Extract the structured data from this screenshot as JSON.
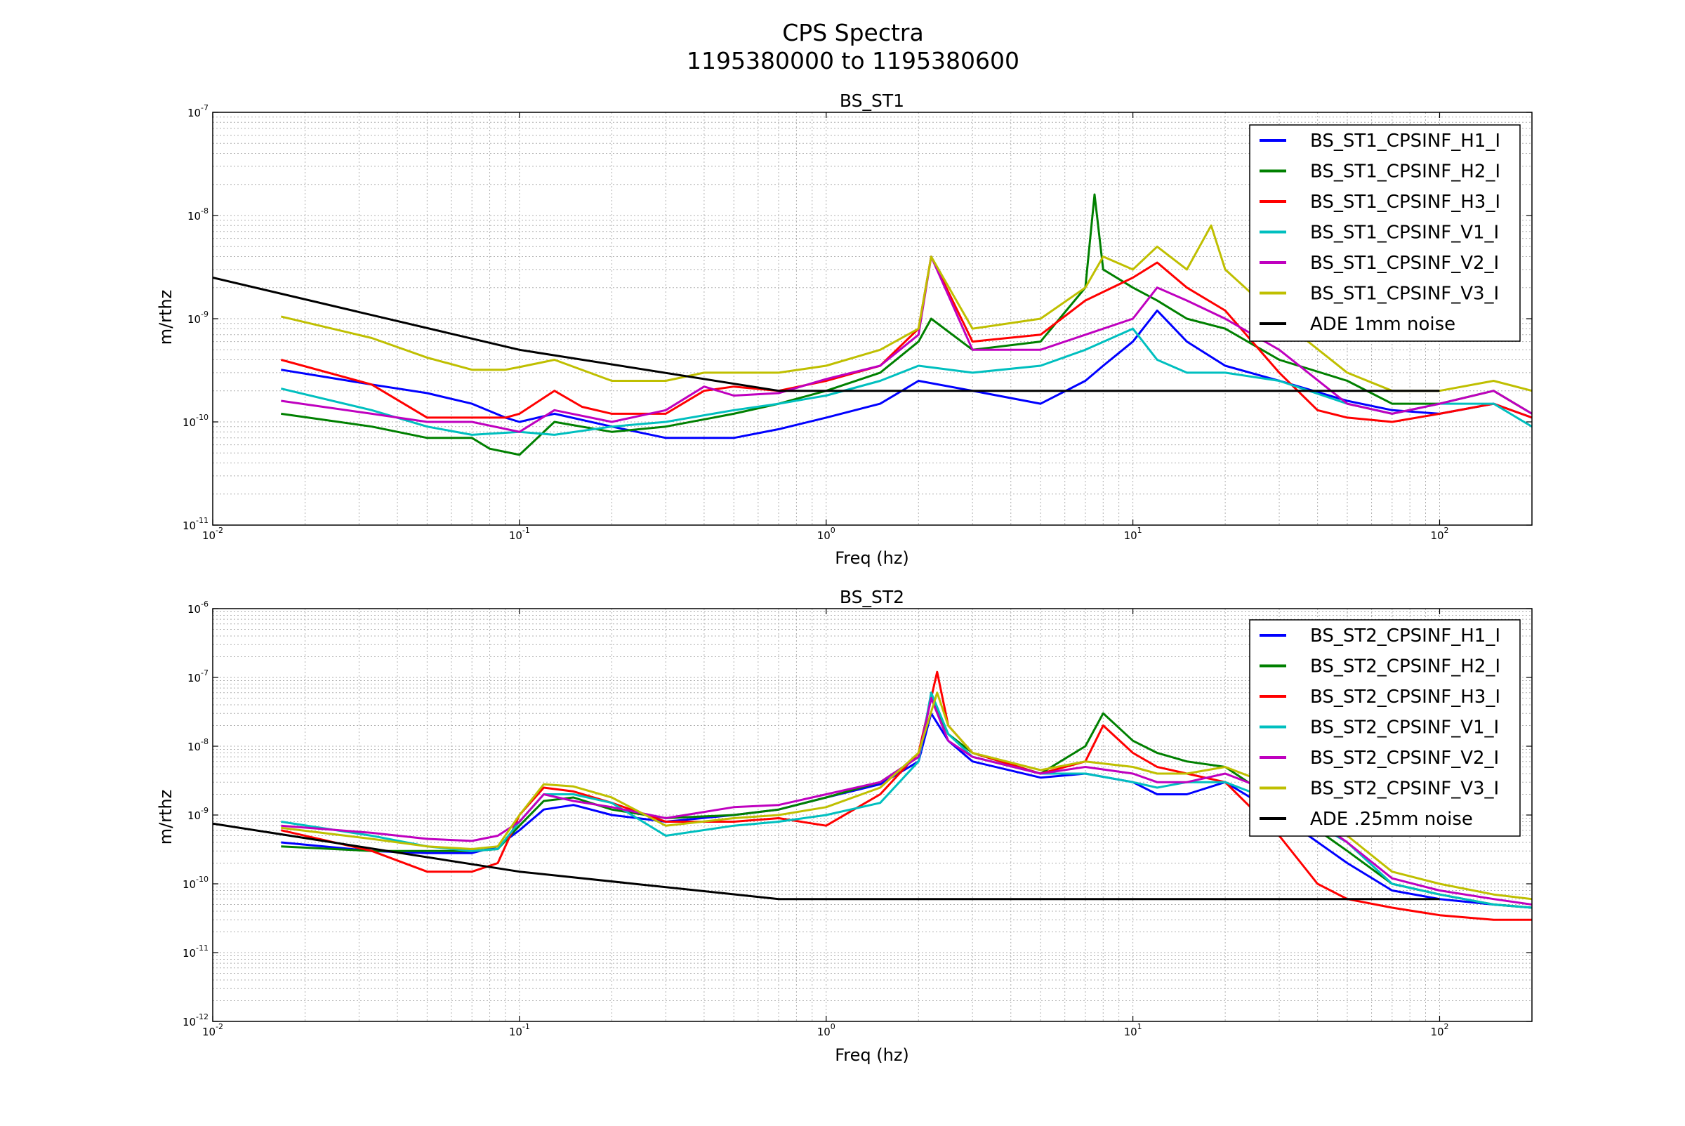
{
  "figure": {
    "title_line1": "CPS Spectra",
    "title_line2": "1195380000 to 1195380600"
  },
  "chart_data": [
    {
      "type": "line",
      "title": "BS_ST1",
      "xlabel": "Freq (hz)",
      "ylabel": "m/rthz",
      "xscale": "log",
      "yscale": "log",
      "xlim": [
        0.01,
        200
      ],
      "ylim": [
        1e-11,
        1e-07
      ],
      "grid": true,
      "legend_position": "top-right",
      "x_ticks": [
        {
          "value": 0.01,
          "label": "10^-2"
        },
        {
          "value": 0.1,
          "label": "10^-1"
        },
        {
          "value": 1,
          "label": "10^0"
        },
        {
          "value": 10,
          "label": "10^1"
        },
        {
          "value": 100,
          "label": "10^2"
        }
      ],
      "y_ticks": [
        {
          "value": 1e-11,
          "label": "10^-11"
        },
        {
          "value": 1e-10,
          "label": "10^-10"
        },
        {
          "value": 1e-09,
          "label": "10^-9"
        },
        {
          "value": 1e-08,
          "label": "10^-8"
        },
        {
          "value": 1e-07,
          "label": "10^-7"
        }
      ],
      "series": [
        {
          "name": "BS_ST1_CPSINF_H1_I",
          "color": "#0000ff",
          "x": [
            0.0167,
            0.033,
            0.05,
            0.07,
            0.09,
            0.1,
            0.13,
            0.2,
            0.3,
            0.5,
            0.7,
            1.0,
            1.5,
            2.0,
            3.0,
            5.0,
            7.0,
            8.0,
            10.0,
            12.0,
            15.0,
            20.0,
            30.0,
            50.0,
            70.0,
            100.0,
            150.0,
            200.0
          ],
          "y": [
            3.2e-10,
            2.3e-10,
            1.9e-10,
            1.5e-10,
            1.1e-10,
            1e-10,
            1.2e-10,
            9e-11,
            7e-11,
            7e-11,
            8.5e-11,
            1.1e-10,
            1.5e-10,
            2.5e-10,
            2e-10,
            1.5e-10,
            2.5e-10,
            3.5e-10,
            6e-10,
            1.2e-09,
            6e-10,
            3.5e-10,
            2.5e-10,
            1.6e-10,
            1.3e-10,
            1.2e-10,
            1.5e-10,
            1.1e-10
          ]
        },
        {
          "name": "BS_ST1_CPSINF_H2_I",
          "color": "#008000",
          "x": [
            0.0167,
            0.033,
            0.05,
            0.07,
            0.08,
            0.1,
            0.13,
            0.2,
            0.3,
            0.5,
            0.7,
            1.0,
            1.5,
            2.0,
            2.2,
            3.0,
            5.0,
            7.0,
            7.5,
            8.0,
            10.0,
            12.0,
            15.0,
            20.0,
            30.0,
            50.0,
            70.0,
            100.0,
            150.0,
            200.0
          ],
          "y": [
            1.2e-10,
            9e-11,
            7e-11,
            7e-11,
            5.5e-11,
            4.8e-11,
            1e-10,
            8e-11,
            9e-11,
            1.2e-10,
            1.5e-10,
            2e-10,
            3e-10,
            6e-10,
            1e-09,
            5e-10,
            6e-10,
            2e-09,
            1.6e-08,
            3e-09,
            2e-09,
            1.5e-09,
            1e-09,
            8e-10,
            4e-10,
            2.5e-10,
            1.5e-10,
            1.5e-10,
            2e-10,
            1.2e-10
          ]
        },
        {
          "name": "BS_ST1_CPSINF_H3_I",
          "color": "#ff0000",
          "x": [
            0.0167,
            0.033,
            0.05,
            0.07,
            0.09,
            0.1,
            0.13,
            0.16,
            0.2,
            0.3,
            0.4,
            0.5,
            0.7,
            1.0,
            1.5,
            2.0,
            2.2,
            3.0,
            5.0,
            7.0,
            10.0,
            12.0,
            15.0,
            20.0,
            30.0,
            40.0,
            50.0,
            70.0,
            100.0,
            150.0,
            200.0
          ],
          "y": [
            4e-10,
            2.3e-10,
            1.1e-10,
            1.1e-10,
            1.1e-10,
            1.2e-10,
            2e-10,
            1.4e-10,
            1.2e-10,
            1.2e-10,
            2e-10,
            2.2e-10,
            2e-10,
            2.5e-10,
            3.5e-10,
            8e-10,
            4e-09,
            6e-10,
            7e-10,
            1.5e-09,
            2.5e-09,
            3.5e-09,
            2e-09,
            1.2e-09,
            3e-10,
            1.3e-10,
            1.1e-10,
            1e-10,
            1.2e-10,
            1.5e-10,
            1.1e-10
          ]
        },
        {
          "name": "BS_ST1_CPSINF_V1_I",
          "color": "#00bfbf",
          "x": [
            0.0167,
            0.033,
            0.05,
            0.07,
            0.1,
            0.13,
            0.2,
            0.3,
            0.5,
            0.7,
            1.0,
            1.5,
            2.0,
            3.0,
            5.0,
            7.0,
            10.0,
            12.0,
            15.0,
            20.0,
            30.0,
            50.0,
            70.0,
            100.0,
            150.0,
            200.0
          ],
          "y": [
            2.1e-10,
            1.3e-10,
            9e-11,
            7.5e-11,
            8e-11,
            7.5e-11,
            9e-11,
            1e-10,
            1.3e-10,
            1.5e-10,
            1.8e-10,
            2.5e-10,
            3.5e-10,
            3e-10,
            3.5e-10,
            5e-10,
            8e-10,
            4e-10,
            3e-10,
            3e-10,
            2.5e-10,
            1.5e-10,
            1.2e-10,
            1.5e-10,
            1.5e-10,
            9e-11
          ]
        },
        {
          "name": "BS_ST1_CPSINF_V2_I",
          "color": "#bf00bf",
          "x": [
            0.0167,
            0.033,
            0.05,
            0.07,
            0.1,
            0.13,
            0.2,
            0.3,
            0.4,
            0.5,
            0.7,
            1.0,
            1.5,
            2.0,
            2.2,
            3.0,
            5.0,
            7.0,
            10.0,
            12.0,
            15.0,
            20.0,
            30.0,
            50.0,
            70.0,
            100.0,
            150.0,
            200.0
          ],
          "y": [
            1.6e-10,
            1.2e-10,
            1e-10,
            1e-10,
            8e-11,
            1.3e-10,
            1e-10,
            1.3e-10,
            2.2e-10,
            1.8e-10,
            1.9e-10,
            2.6e-10,
            3.5e-10,
            7e-10,
            4e-09,
            5e-10,
            5e-10,
            7e-10,
            1e-09,
            2e-09,
            1.5e-09,
            1e-09,
            5e-10,
            1.5e-10,
            1.2e-10,
            1.5e-10,
            2e-10,
            1.2e-10
          ]
        },
        {
          "name": "BS_ST1_CPSINF_V3_I",
          "color": "#bfbf00",
          "x": [
            0.0167,
            0.033,
            0.05,
            0.07,
            0.09,
            0.1,
            0.13,
            0.2,
            0.3,
            0.4,
            0.5,
            0.7,
            1.0,
            1.5,
            2.0,
            2.2,
            3.0,
            5.0,
            7.0,
            8.0,
            10.0,
            12.0,
            15.0,
            18.0,
            20.0,
            30.0,
            50.0,
            70.0,
            100.0,
            150.0,
            200.0
          ],
          "y": [
            1.05e-09,
            6.5e-10,
            4.2e-10,
            3.2e-10,
            3.2e-10,
            3.4e-10,
            4e-10,
            2.5e-10,
            2.5e-10,
            3e-10,
            3e-10,
            3e-10,
            3.5e-10,
            5e-10,
            8e-10,
            4e-09,
            8e-10,
            1e-09,
            2e-09,
            4e-09,
            3e-09,
            5e-09,
            3e-09,
            8e-09,
            3e-09,
            1e-09,
            3e-10,
            2e-10,
            2e-10,
            2.5e-10,
            2e-10
          ]
        },
        {
          "name": "ADE 1mm noise",
          "color": "#000000",
          "x": [
            0.01,
            0.1,
            0.7,
            100.0
          ],
          "y": [
            2.5e-09,
            5e-10,
            2e-10,
            2e-10
          ]
        }
      ]
    },
    {
      "type": "line",
      "title": "BS_ST2",
      "xlabel": "Freq (hz)",
      "ylabel": "m/rthz",
      "xscale": "log",
      "yscale": "log",
      "xlim": [
        0.01,
        200
      ],
      "ylim": [
        1e-12,
        1e-06
      ],
      "grid": true,
      "legend_position": "top-right",
      "x_ticks": [
        {
          "value": 0.01,
          "label": "10^-2"
        },
        {
          "value": 0.1,
          "label": "10^-1"
        },
        {
          "value": 1,
          "label": "10^0"
        },
        {
          "value": 10,
          "label": "10^1"
        },
        {
          "value": 100,
          "label": "10^2"
        }
      ],
      "y_ticks": [
        {
          "value": 1e-12,
          "label": "10^-12"
        },
        {
          "value": 1e-11,
          "label": "10^-11"
        },
        {
          "value": 1e-10,
          "label": "10^-10"
        },
        {
          "value": 1e-09,
          "label": "10^-9"
        },
        {
          "value": 1e-08,
          "label": "10^-8"
        },
        {
          "value": 1e-07,
          "label": "10^-7"
        },
        {
          "value": 1e-06,
          "label": "10^-6"
        }
      ],
      "series": [
        {
          "name": "BS_ST2_CPSINF_H1_I",
          "color": "#0000ff",
          "x": [
            0.0167,
            0.033,
            0.05,
            0.07,
            0.085,
            0.1,
            0.12,
            0.15,
            0.2,
            0.3,
            0.5,
            0.7,
            1.0,
            1.5,
            2.0,
            2.2,
            2.5,
            3.0,
            5.0,
            7.0,
            10.0,
            12.0,
            15.0,
            20.0,
            30.0,
            50.0,
            70.0,
            100.0,
            150.0,
            200.0
          ],
          "y": [
            4e-10,
            3e-10,
            2.8e-10,
            2.8e-10,
            3.5e-10,
            6e-10,
            1.2e-09,
            1.4e-09,
            1e-09,
            8e-10,
            1e-09,
            1.2e-09,
            1.8e-09,
            2.8e-09,
            6e-09,
            3e-08,
            1.2e-08,
            6e-09,
            3.5e-09,
            4e-09,
            3e-09,
            2e-09,
            2e-09,
            3e-09,
            1e-09,
            2e-10,
            8e-11,
            6e-11,
            5e-11,
            4.5e-11
          ]
        },
        {
          "name": "BS_ST2_CPSINF_H2_I",
          "color": "#008000",
          "x": [
            0.0167,
            0.033,
            0.05,
            0.07,
            0.085,
            0.1,
            0.12,
            0.15,
            0.2,
            0.3,
            0.5,
            0.7,
            1.0,
            1.5,
            2.0,
            2.2,
            2.5,
            3.0,
            5.0,
            7.0,
            8.0,
            10.0,
            12.0,
            15.0,
            20.0,
            30.0,
            50.0,
            70.0,
            100.0,
            150.0,
            200.0
          ],
          "y": [
            3.5e-10,
            3e-10,
            3e-10,
            3e-10,
            3.2e-10,
            7e-10,
            1.6e-09,
            1.8e-09,
            1.2e-09,
            9e-10,
            1e-09,
            1.2e-09,
            1.8e-09,
            3e-09,
            7e-09,
            5e-08,
            1.5e-08,
            8e-09,
            4e-09,
            1e-08,
            3e-08,
            1.2e-08,
            8e-09,
            6e-09,
            5e-09,
            1.5e-09,
            3e-10,
            1e-10,
            7e-11,
            5e-11,
            4.5e-11
          ]
        },
        {
          "name": "BS_ST2_CPSINF_H3_I",
          "color": "#ff0000",
          "x": [
            0.0167,
            0.033,
            0.05,
            0.07,
            0.085,
            0.1,
            0.12,
            0.15,
            0.2,
            0.3,
            0.5,
            0.7,
            1.0,
            1.5,
            2.0,
            2.3,
            2.5,
            3.0,
            5.0,
            7.0,
            8.0,
            10.0,
            12.0,
            15.0,
            20.0,
            30.0,
            40.0,
            50.0,
            70.0,
            100.0,
            150.0,
            200.0
          ],
          "y": [
            6e-10,
            3e-10,
            1.5e-10,
            1.5e-10,
            2e-10,
            1e-09,
            2.5e-09,
            2.2e-09,
            1.5e-09,
            8e-10,
            8e-10,
            9e-10,
            7e-10,
            2e-09,
            8e-09,
            1.2e-07,
            2e-08,
            8e-09,
            4e-09,
            6e-09,
            2e-08,
            8e-09,
            5e-09,
            4e-09,
            3e-09,
            5e-10,
            1e-10,
            6e-11,
            4.5e-11,
            3.5e-11,
            3e-11,
            3e-11
          ]
        },
        {
          "name": "BS_ST2_CPSINF_V1_I",
          "color": "#00bfbf",
          "x": [
            0.0167,
            0.033,
            0.05,
            0.07,
            0.085,
            0.1,
            0.12,
            0.15,
            0.2,
            0.3,
            0.5,
            0.7,
            1.0,
            1.5,
            2.0,
            2.2,
            2.5,
            3.0,
            5.0,
            7.0,
            10.0,
            12.0,
            15.0,
            20.0,
            30.0,
            50.0,
            70.0,
            100.0,
            150.0,
            200.0
          ],
          "y": [
            8e-10,
            5e-10,
            3.5e-10,
            3e-10,
            3.2e-10,
            8e-10,
            2e-09,
            2e-09,
            1.5e-09,
            5e-10,
            7e-10,
            8e-10,
            1e-09,
            1.5e-09,
            6e-09,
            6e-08,
            1.5e-08,
            7e-09,
            4e-09,
            4e-09,
            3e-09,
            2.5e-09,
            3e-09,
            3e-09,
            1.5e-09,
            4e-10,
            1e-10,
            7e-11,
            5e-11,
            4.5e-11
          ]
        },
        {
          "name": "BS_ST2_CPSINF_V2_I",
          "color": "#bf00bf",
          "x": [
            0.0167,
            0.033,
            0.05,
            0.07,
            0.085,
            0.1,
            0.12,
            0.15,
            0.2,
            0.3,
            0.5,
            0.7,
            1.0,
            1.5,
            2.0,
            2.2,
            2.5,
            3.0,
            5.0,
            7.0,
            10.0,
            12.0,
            15.0,
            20.0,
            30.0,
            50.0,
            70.0,
            100.0,
            150.0,
            200.0
          ],
          "y": [
            7e-10,
            5.5e-10,
            4.5e-10,
            4.2e-10,
            5e-10,
            8e-10,
            2e-09,
            1.6e-09,
            1.3e-09,
            9e-10,
            1.3e-09,
            1.4e-09,
            2e-09,
            3e-09,
            7e-09,
            5e-08,
            1.2e-08,
            7e-09,
            4e-09,
            5e-09,
            4e-09,
            3e-09,
            3e-09,
            4e-09,
            2e-09,
            4e-10,
            1.2e-10,
            8e-11,
            6e-11,
            5e-11
          ]
        },
        {
          "name": "BS_ST2_CPSINF_V3_I",
          "color": "#bfbf00",
          "x": [
            0.0167,
            0.033,
            0.05,
            0.07,
            0.085,
            0.1,
            0.12,
            0.15,
            0.2,
            0.3,
            0.5,
            0.7,
            1.0,
            1.5,
            2.0,
            2.3,
            2.5,
            3.0,
            5.0,
            7.0,
            10.0,
            12.0,
            15.0,
            20.0,
            30.0,
            50.0,
            70.0,
            100.0,
            150.0,
            200.0
          ],
          "y": [
            6.5e-10,
            4.5e-10,
            3.5e-10,
            3.2e-10,
            3.5e-10,
            1e-09,
            2.8e-09,
            2.6e-09,
            1.8e-09,
            7e-10,
            9e-10,
            1e-09,
            1.3e-09,
            2.5e-09,
            8e-09,
            6e-08,
            2e-08,
            8e-09,
            4.5e-09,
            6e-09,
            5e-09,
            4e-09,
            4e-09,
            5e-09,
            2.5e-09,
            5e-10,
            1.5e-10,
            1e-10,
            7e-11,
            6e-11
          ]
        },
        {
          "name": "ADE .25mm noise",
          "color": "#000000",
          "x": [
            0.01,
            0.1,
            0.7,
            100.0
          ],
          "y": [
            7.5e-10,
            1.5e-10,
            6e-11,
            6e-11
          ]
        }
      ]
    }
  ]
}
